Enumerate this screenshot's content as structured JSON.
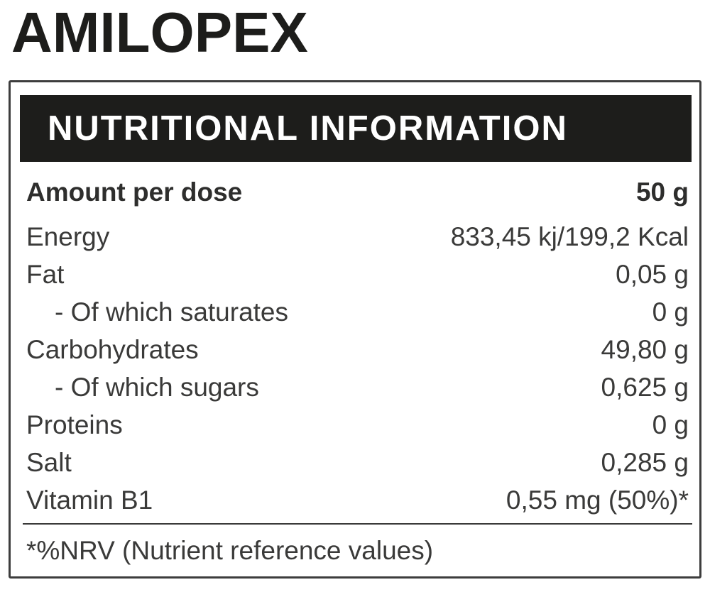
{
  "page": {
    "title": "AMILOPEX"
  },
  "panel": {
    "header": {
      "title": "NUTRITIONAL INFORMATION"
    },
    "serving": {
      "label": "Amount per dose",
      "value": "50 g"
    },
    "rows": [
      {
        "label": "Energy",
        "value": "833,45 kj/199,2 Kcal"
      },
      {
        "label": "Fat",
        "value": "0,05 g"
      },
      {
        "label": "- Of which saturates",
        "value": "0 g"
      },
      {
        "label": "Carbohydrates",
        "value": "49,80 g"
      },
      {
        "label": "- Of which sugars",
        "value": "0,625 g"
      },
      {
        "label": "Proteins",
        "value": "0 g"
      },
      {
        "label": "Salt",
        "value": "0,285 g"
      },
      {
        "label": "Vitamin B1",
        "value": "0,55 mg (50%)*"
      }
    ],
    "footnote": "*%NRV (Nutrient reference values)"
  },
  "colors": {
    "ink": "#1d1d1b",
    "row_text": "#3a3a39",
    "panel_border": "#3d3d3d",
    "header_bar_bg": "#1d1d1b",
    "header_bar_text": "#ffffff",
    "page_bg": "#ffffff"
  }
}
